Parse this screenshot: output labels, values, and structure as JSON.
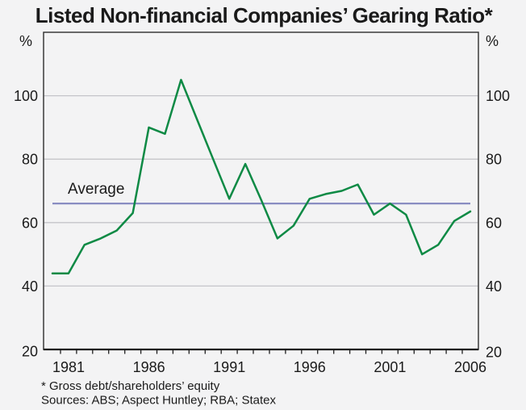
{
  "title": "Listed Non-financial Companies’ Gearing Ratio*",
  "footnote": "* Gross debt/shareholders’ equity",
  "sources": "Sources: ABS; Aspect Huntley; RBA; Statex",
  "chart_data": {
    "type": "line",
    "title": "Listed Non-financial Companies’ Gearing Ratio*",
    "unit_left": "%",
    "unit_right": "%",
    "ylim": [
      20,
      120
    ],
    "yticks": [
      20,
      40,
      60,
      80,
      100
    ],
    "xlim": [
      1980,
      2006
    ],
    "xtick_labels": [
      "1981",
      "1986",
      "1991",
      "1996",
      "2001",
      "2006"
    ],
    "grid": "horizontal gridlines at 40, 60, 80, 100; duplicate % axes left and right",
    "legend_position": "none",
    "x": [
      1980,
      1981,
      1982,
      1983,
      1984,
      1985,
      1986,
      1987,
      1988,
      1989,
      1990,
      1991,
      1992,
      1993,
      1994,
      1995,
      1996,
      1997,
      1998,
      1999,
      2000,
      2001,
      2002,
      2003,
      2004,
      2005,
      2006
    ],
    "series": [
      {
        "name": "Gearing ratio (gross debt / shareholders’ equity)",
        "color": "#0e8a45",
        "values": [
          44,
          44,
          53,
          55,
          57.5,
          63,
          90,
          88,
          105,
          92.5,
          80,
          67.5,
          78.5,
          67,
          55,
          59,
          67.5,
          69,
          70,
          72,
          62.5,
          66,
          62.5,
          50,
          53,
          60.5,
          63.5
        ]
      }
    ],
    "reference_line": {
      "label": "Average",
      "value": 66,
      "color": "#8387bf"
    }
  }
}
